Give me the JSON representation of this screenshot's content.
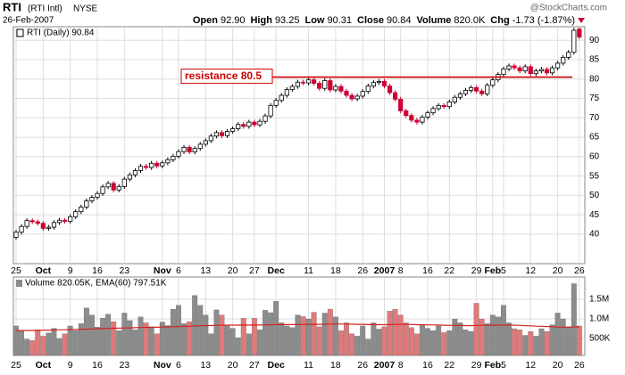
{
  "header": {
    "symbol": "RTI",
    "name": "(RTI Intl)",
    "exchange": "NYSE",
    "date": "26-Feb-2007",
    "brand": "@StockCharts.com",
    "quote": [
      {
        "label": "Open",
        "value": "92.90"
      },
      {
        "label": "High",
        "value": "93.25"
      },
      {
        "label": "Low",
        "value": "90.31"
      },
      {
        "label": "Close",
        "value": "90.84"
      },
      {
        "label": "Volume",
        "value": "820.0K"
      },
      {
        "label": "Chg",
        "value": "-1.73 (-1.87%)"
      }
    ]
  },
  "chart_data": [
    {
      "type": "candlestick",
      "legend": "RTI (Daily) 90.84",
      "up_color": "#000000",
      "down_color": "#cc0033",
      "grid": true,
      "categories": [
        "25",
        null,
        null,
        null,
        null,
        "Oct",
        null,
        null,
        null,
        null,
        "9",
        null,
        null,
        null,
        null,
        "16",
        null,
        null,
        null,
        null,
        "23",
        null,
        null,
        null,
        null,
        null,
        null,
        "Nov",
        null,
        null,
        "6",
        null,
        null,
        null,
        null,
        "13",
        null,
        null,
        null,
        null,
        "20",
        null,
        null,
        null,
        "27",
        null,
        null,
        null,
        "Dec",
        null,
        null,
        null,
        null,
        null,
        "11",
        null,
        null,
        null,
        null,
        "18",
        null,
        null,
        null,
        null,
        "26",
        null,
        null,
        null,
        "2007",
        null,
        null,
        "8",
        null,
        null,
        null,
        null,
        "16",
        null,
        null,
        null,
        "22",
        null,
        null,
        null,
        null,
        "29",
        null,
        null,
        "Feb",
        null,
        "5",
        null,
        null,
        null,
        null,
        "12",
        null,
        null,
        null,
        null,
        "20",
        null,
        null,
        null,
        "26"
      ],
      "open": [
        39.2,
        40.5,
        42,
        43.5,
        43.2,
        42.8,
        41.5,
        41.8,
        43,
        43.6,
        43.3,
        44.5,
        45.8,
        47,
        48.6,
        49.5,
        50.5,
        52.2,
        53.1,
        51.4,
        52.3,
        54.2,
        55.3,
        56.4,
        57.5,
        57.2,
        58.3,
        57.6,
        58.4,
        59.2,
        60.1,
        61.3,
        62.4,
        61.2,
        62.1,
        63.2,
        64.1,
        65.3,
        66.2,
        65.4,
        66.5,
        67.2,
        68.3,
        67.8,
        68.9,
        68.2,
        69.1,
        70.5,
        73.2,
        74.5,
        75.8,
        77.3,
        78.1,
        79.2,
        79,
        79.8,
        78.9,
        77.6,
        79.6,
        77.2,
        78.1,
        76.9,
        75.8,
        74.9,
        75.6,
        76.8,
        78.2,
        79.1,
        79.4,
        78.2,
        76.5,
        74.8,
        71.8,
        70.6,
        69.4,
        68.9,
        70.2,
        71.3,
        72.4,
        73.2,
        72.9,
        74.1,
        75.3,
        76.2,
        77.1,
        77.8,
        76.9,
        76.2,
        78.4,
        79.8,
        81.2,
        82.6,
        83.4,
        82.9,
        82.1,
        83.2,
        81.4,
        82.1,
        82.5,
        81.6,
        82.9,
        84.1,
        85.6,
        86.9,
        92.9
      ],
      "high": [
        41.1,
        42.6,
        44.1,
        44.1,
        43.8,
        43.4,
        42.4,
        43.6,
        44.2,
        44.2,
        45.1,
        46.4,
        47.6,
        49.2,
        50.1,
        51.1,
        52.8,
        53.7,
        53.7,
        52.9,
        54.8,
        55.9,
        57,
        58.1,
        58.1,
        58.9,
        58.9,
        59,
        59.8,
        60.7,
        61.9,
        63,
        63,
        62.7,
        63.8,
        64.7,
        65.9,
        66.8,
        66.8,
        67.1,
        67.8,
        68.9,
        68.9,
        69.5,
        69.5,
        69.7,
        71.1,
        73.8,
        75.1,
        76.4,
        77.9,
        78.7,
        79.8,
        79.8,
        80.4,
        80.4,
        79.5,
        80.2,
        80.2,
        78.7,
        78.7,
        77.5,
        76.4,
        76.2,
        77.4,
        78.8,
        79.7,
        80,
        80,
        78.8,
        77.1,
        75.4,
        72.4,
        71.2,
        70,
        70.8,
        71.9,
        73,
        73.8,
        73.8,
        74.7,
        75.9,
        76.8,
        77.7,
        78.4,
        78.4,
        77.5,
        79,
        80.4,
        81.8,
        83.2,
        84,
        84,
        83.5,
        83.8,
        83.8,
        82.7,
        83.1,
        83.1,
        83.5,
        84.7,
        86.2,
        87.5,
        93.2,
        93.25
      ],
      "low": [
        38.6,
        39.9,
        41.4,
        42.6,
        42.2,
        40.9,
        40.9,
        41.2,
        42.4,
        42.7,
        42.7,
        43.9,
        45.2,
        46.4,
        48,
        48.9,
        49.9,
        51.6,
        50.8,
        50.8,
        51.7,
        53.6,
        54.7,
        55.8,
        56.6,
        56.6,
        57,
        57,
        57.8,
        58.6,
        59.5,
        60.7,
        60.6,
        60.6,
        61.5,
        62.6,
        63.5,
        64.7,
        64.8,
        64.8,
        65.9,
        66.6,
        67.2,
        67.2,
        67.6,
        67.6,
        68.5,
        69.9,
        72.6,
        73.9,
        75.2,
        76.7,
        77.5,
        78.4,
        78.4,
        78.3,
        77,
        77,
        76.6,
        76.6,
        76.3,
        75.2,
        74.3,
        74.3,
        75,
        76.2,
        77.6,
        78.5,
        77.6,
        75.9,
        74.2,
        71.2,
        70,
        68.8,
        68.3,
        68.3,
        69.6,
        70.7,
        71.8,
        72.3,
        72.3,
        73.5,
        74.7,
        75.6,
        76.5,
        76.3,
        75.6,
        75.6,
        77.8,
        79.2,
        80.6,
        82,
        82.3,
        81.5,
        81.5,
        80.8,
        80.8,
        81.5,
        81,
        81,
        82.3,
        83.5,
        85,
        86.3,
        90.31
      ],
      "close": [
        40.5,
        42,
        43.5,
        43.2,
        42.8,
        41.5,
        41.8,
        43,
        43.6,
        43.3,
        44.5,
        45.8,
        47,
        48.6,
        49.5,
        50.5,
        52.2,
        53.1,
        51.4,
        52.3,
        54.2,
        55.3,
        56.4,
        57.5,
        57.2,
        58.3,
        57.6,
        58.4,
        59.2,
        60.1,
        61.3,
        62.4,
        61.2,
        62.1,
        63.2,
        64.1,
        65.3,
        66.2,
        65.4,
        66.5,
        67.2,
        68.3,
        67.8,
        68.9,
        68.2,
        69.1,
        70.5,
        73.2,
        74.5,
        75.8,
        77.3,
        78.1,
        79.2,
        79,
        79.8,
        78.9,
        77.6,
        79.6,
        77.2,
        78.1,
        76.9,
        75.8,
        74.9,
        75.6,
        76.8,
        78.2,
        79.1,
        79.4,
        78.2,
        76.5,
        74.8,
        71.8,
        70.6,
        69.4,
        68.9,
        70.2,
        71.3,
        72.4,
        73.2,
        72.9,
        74.1,
        75.3,
        76.2,
        77.1,
        77.8,
        76.9,
        76.2,
        78.4,
        79.8,
        81.2,
        82.6,
        83.4,
        82.9,
        82.1,
        83.2,
        81.4,
        82.1,
        82.5,
        81.6,
        82.9,
        84.1,
        85.6,
        86.9,
        92.57,
        90.84
      ],
      "ylim": [
        32.4,
        93.5
      ],
      "yticks": [
        40,
        45,
        50,
        55,
        60,
        65,
        70,
        75,
        80,
        85,
        90
      ],
      "annotation": {
        "text": "resistance 80.5",
        "value": 80.5,
        "color": "#cc0000"
      }
    },
    {
      "type": "bar",
      "legend": "Volume 820.05K, EMA(60) 797.51K",
      "up_color": "#8c8c8c",
      "down_color": "#e07a7a",
      "line_color": "#d22222",
      "grid": true,
      "categories": [
        "25",
        null,
        null,
        null,
        null,
        "Oct",
        null,
        null,
        null,
        null,
        "9",
        null,
        null,
        null,
        null,
        "16",
        null,
        null,
        null,
        null,
        "23",
        null,
        null,
        null,
        null,
        null,
        null,
        "Nov",
        null,
        null,
        "6",
        null,
        null,
        null,
        null,
        "13",
        null,
        null,
        null,
        null,
        "20",
        null,
        null,
        null,
        "27",
        null,
        null,
        null,
        "Dec",
        null,
        null,
        null,
        null,
        null,
        "11",
        null,
        null,
        null,
        null,
        "18",
        null,
        null,
        null,
        null,
        "26",
        null,
        null,
        null,
        "2007",
        null,
        null,
        "8",
        null,
        null,
        null,
        null,
        "16",
        null,
        null,
        null,
        "22",
        null,
        null,
        null,
        null,
        "29",
        null,
        null,
        "Feb",
        null,
        "5",
        null,
        null,
        null,
        null,
        "12",
        null,
        null,
        null,
        null,
        "20",
        null,
        null,
        null,
        "26"
      ],
      "values": [
        820000,
        700000,
        480000,
        450000,
        720000,
        560000,
        640000,
        760000,
        500000,
        620000,
        820000,
        700000,
        880000,
        1280000,
        1100000,
        790000,
        1020000,
        1120000,
        930000,
        700000,
        1150000,
        960000,
        720000,
        1050000,
        900000,
        800000,
        620000,
        920000,
        830000,
        1250000,
        1350000,
        880000,
        930000,
        1600000,
        1350000,
        1100000,
        620000,
        1230000,
        1100000,
        820000,
        760000,
        520000,
        1020000,
        620000,
        1020000,
        720000,
        1220000,
        1160000,
        1450000,
        900000,
        820000,
        780000,
        1100000,
        1060000,
        1000000,
        1170000,
        800000,
        1150000,
        1250000,
        1050000,
        700000,
        900000,
        620000,
        560000,
        820000,
        480000,
        900000,
        740000,
        800000,
        1200000,
        1250000,
        1100000,
        900000,
        780000,
        620000,
        850000,
        760000,
        700000,
        820000,
        650000,
        700000,
        1000000,
        900000,
        720000,
        680000,
        1400000,
        1000000,
        880000,
        1100000,
        1050000,
        1350000,
        900000,
        750000,
        720000,
        580000,
        680000,
        560000,
        750000,
        680000,
        850000,
        1150000,
        1000000,
        800000,
        1900000,
        820050
      ],
      "ema": [
        700000,
        702000,
        704000,
        706000,
        708000,
        711000,
        714000,
        717000,
        720000,
        723000,
        726000,
        729000,
        732000,
        738000,
        744000,
        748000,
        752000,
        757000,
        761000,
        764000,
        768000,
        772000,
        775000,
        779000,
        782000,
        785000,
        787000,
        791000,
        795000,
        800000,
        806000,
        809000,
        812000,
        820000,
        826000,
        830000,
        831000,
        836000,
        840000,
        841000,
        842000,
        841000,
        843000,
        842000,
        844000,
        843000,
        847000,
        850000,
        855000,
        856000,
        856000,
        856000,
        858000,
        860000,
        861000,
        864000,
        863000,
        865000,
        868000,
        870000,
        868000,
        869000,
        866000,
        862000,
        861000,
        855000,
        856000,
        854000,
        853000,
        856000,
        860000,
        861000,
        860000,
        857000,
        852000,
        852000,
        849000,
        845000,
        844000,
        839000,
        835000,
        836000,
        834000,
        830000,
        826000,
        834000,
        836000,
        836000,
        839000,
        840000,
        846000,
        844000,
        840000,
        836000,
        828000,
        823000,
        815000,
        812000,
        806000,
        804000,
        790000,
        790000,
        789000,
        796000,
        797510
      ],
      "ylim": [
        68000,
        2070000
      ],
      "yticks": [
        {
          "value": 500000,
          "label": "500K"
        },
        {
          "value": 1000000,
          "label": "1.0M"
        },
        {
          "value": 1500000,
          "label": "1.5M"
        }
      ]
    }
  ]
}
